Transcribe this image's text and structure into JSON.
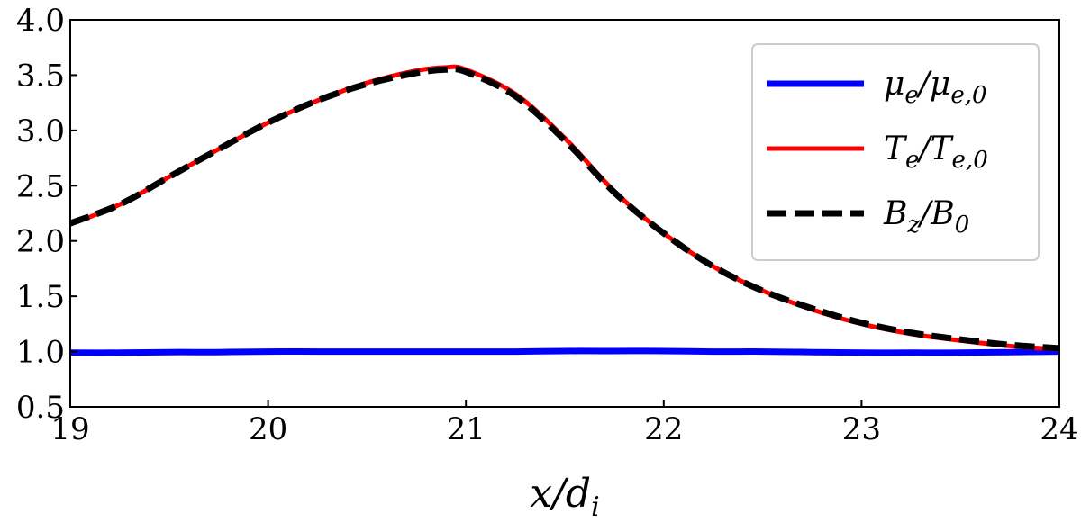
{
  "chart_data": {
    "type": "line",
    "title": "",
    "xlabel": "x/d_i",
    "xlabel_parts": {
      "main": "x/d",
      "sub": "i"
    },
    "ylabel": "",
    "xlim": [
      19,
      24
    ],
    "ylim": [
      0.5,
      4.0
    ],
    "xticks": [
      19,
      20,
      21,
      22,
      23,
      24
    ],
    "yticks": [
      0.5,
      1.0,
      1.5,
      2.0,
      2.5,
      3.0,
      3.5,
      4.0
    ],
    "xtick_labels": [
      "19",
      "20",
      "21",
      "22",
      "23",
      "24"
    ],
    "ytick_labels": [
      "0.5",
      "1.0",
      "1.5",
      "2.0",
      "2.5",
      "3.0",
      "3.5",
      "4.0"
    ],
    "grid": false,
    "legend_position": "top-right",
    "x": [
      19.0,
      19.25,
      19.5,
      19.75,
      20.0,
      20.25,
      20.5,
      20.75,
      20.9,
      21.0,
      21.25,
      21.5,
      21.75,
      22.0,
      22.25,
      22.5,
      22.75,
      23.0,
      23.25,
      23.5,
      23.75,
      24.0
    ],
    "series": [
      {
        "name": "μ_e/μ_e,0",
        "name_parts": {
          "a": "μ",
          "a_sub": "e",
          "b": "μ",
          "b_sub": "e,0"
        },
        "color": "#0000ff",
        "style": "solid",
        "values": [
          0.99,
          0.99,
          0.995,
          0.995,
          1.0,
          1.0,
          1.0,
          1.0,
          1.0,
          1.0,
          1.0,
          1.005,
          1.005,
          1.005,
          1.0,
          1.0,
          0.995,
          0.99,
          0.99,
          0.99,
          0.995,
          1.0
        ]
      },
      {
        "name": "T_e/T_e,0",
        "name_parts": {
          "a": "T",
          "a_sub": "e",
          "b": "T",
          "b_sub": "e,0"
        },
        "color": "#ff0000",
        "style": "solid",
        "values": [
          2.15,
          2.33,
          2.58,
          2.83,
          3.07,
          3.27,
          3.43,
          3.54,
          3.57,
          3.55,
          3.33,
          2.93,
          2.45,
          2.07,
          1.77,
          1.55,
          1.38,
          1.25,
          1.16,
          1.1,
          1.05,
          1.02
        ]
      },
      {
        "name": "B_z/B_0",
        "name_parts": {
          "a": "B",
          "a_sub": "z",
          "b": "B",
          "b_sub": "0"
        },
        "color": "#000000",
        "style": "dashed",
        "values": [
          2.16,
          2.33,
          2.58,
          2.83,
          3.07,
          3.27,
          3.42,
          3.52,
          3.55,
          3.53,
          3.31,
          2.91,
          2.44,
          2.07,
          1.77,
          1.55,
          1.39,
          1.26,
          1.17,
          1.11,
          1.06,
          1.03
        ]
      }
    ]
  }
}
